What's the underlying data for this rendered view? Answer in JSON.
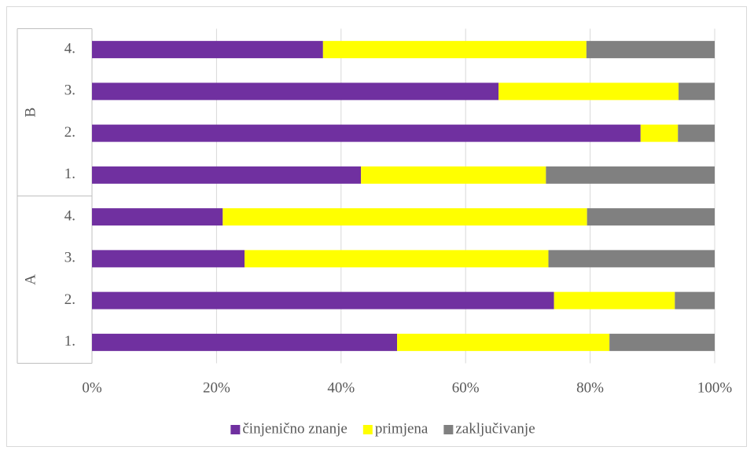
{
  "chart_data": {
    "type": "stacked-bar-horizontal",
    "category_groups": [
      {
        "label": "A",
        "categories": [
          "1.",
          "2.",
          "3.",
          "4."
        ]
      },
      {
        "label": "B",
        "categories": [
          "1.",
          "2.",
          "3.",
          "4."
        ]
      }
    ],
    "series": [
      {
        "name": "činjenično znanje",
        "color": "#7030a0",
        "values": [
          49.0,
          74.2,
          24.5,
          21.0,
          43.2,
          88.1,
          65.3,
          37.1
        ]
      },
      {
        "name": "primjena",
        "color": "#ffff00",
        "values": [
          34.1,
          19.4,
          48.8,
          58.5,
          29.7,
          6.0,
          28.9,
          42.3
        ]
      },
      {
        "name": "zaključivanje",
        "color": "#808080",
        "values": [
          16.9,
          6.4,
          26.7,
          20.5,
          27.1,
          5.9,
          5.8,
          20.6
        ]
      }
    ],
    "xlim": [
      0,
      100
    ],
    "xticks": [
      {
        "value": 0,
        "label": "0%"
      },
      {
        "value": 20,
        "label": "20%"
      },
      {
        "value": 40,
        "label": "40%"
      },
      {
        "value": 60,
        "label": "60%"
      },
      {
        "value": 80,
        "label": "80%"
      },
      {
        "value": 100,
        "label": "100%"
      }
    ],
    "grid": true,
    "legend": "bottom"
  }
}
